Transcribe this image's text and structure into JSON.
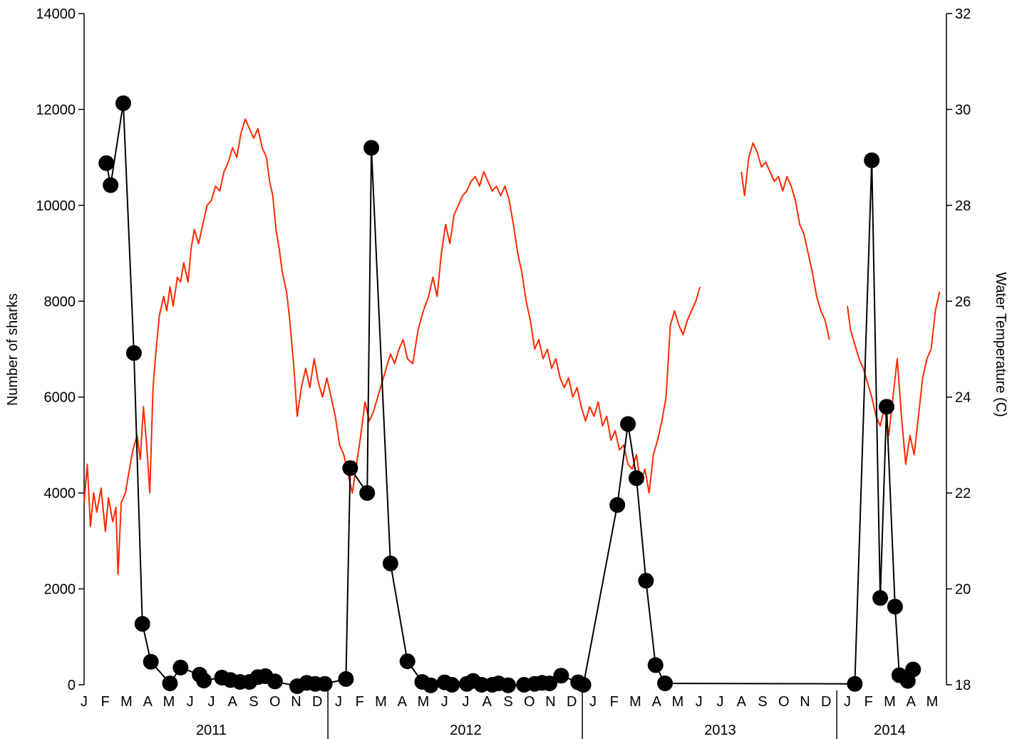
{
  "chart_data": {
    "type": "line",
    "title": "",
    "ylabel_left": "Number of sharks",
    "ylabel_right": "Water Temperature (C)",
    "y_left_lim": [
      0,
      14000
    ],
    "y_left_ticks": [
      "0",
      "2000",
      "4000",
      "6000",
      "8000",
      "10000",
      "12000",
      "14000"
    ],
    "y_right_lim": [
      18,
      32
    ],
    "y_right_ticks": [
      "18",
      "20",
      "22",
      "24",
      "26",
      "28",
      "30",
      "32"
    ],
    "x_range_months": [
      0,
      40
    ],
    "month_labels": [
      "J",
      "F",
      "M",
      "A",
      "M",
      "J",
      "J",
      "A",
      "S",
      "O",
      "N",
      "D",
      "J",
      "F",
      "M",
      "A",
      "M",
      "J",
      "J",
      "A",
      "S",
      "O",
      "N",
      "D",
      "J",
      "F",
      "M",
      "A",
      "M",
      "J",
      "J",
      "A",
      "S",
      "O",
      "N",
      "D",
      "J",
      "F",
      "M",
      "A",
      "M"
    ],
    "years": [
      {
        "label": "2011",
        "start": 0,
        "end": 12
      },
      {
        "label": "2012",
        "start": 12,
        "end": 24
      },
      {
        "label": "2013",
        "start": 24,
        "end": 36
      },
      {
        "label": "2014",
        "start": 36,
        "end": 40
      }
    ],
    "colors": {
      "sharks": "#000000",
      "temperature": "#ff2a00"
    },
    "series": [
      {
        "axis": "left",
        "marker": "circle",
        "points": [
          [
            1.05,
            10880
          ],
          [
            1.25,
            10420
          ],
          [
            1.85,
            12130
          ],
          [
            2.35,
            6920
          ],
          [
            2.75,
            1270
          ],
          [
            3.15,
            480
          ],
          [
            4.05,
            30
          ],
          [
            4.55,
            360
          ],
          [
            5.45,
            210
          ],
          [
            5.65,
            90
          ],
          [
            6.5,
            150
          ],
          [
            6.9,
            100
          ],
          [
            7.35,
            60
          ],
          [
            7.8,
            60
          ],
          [
            8.2,
            160
          ],
          [
            8.55,
            180
          ],
          [
            9.0,
            70
          ],
          [
            10.05,
            -30
          ],
          [
            10.5,
            40
          ],
          [
            10.9,
            20
          ],
          [
            11.35,
            20
          ],
          [
            12.35,
            120
          ],
          [
            12.55,
            4520
          ],
          [
            13.35,
            4000
          ],
          [
            13.55,
            11200
          ],
          [
            14.45,
            2530
          ],
          [
            15.25,
            490
          ],
          [
            15.95,
            60
          ],
          [
            16.35,
            -10
          ],
          [
            17.0,
            50
          ],
          [
            17.35,
            0
          ],
          [
            18.05,
            20
          ],
          [
            18.35,
            80
          ],
          [
            18.75,
            0
          ],
          [
            19.25,
            0
          ],
          [
            19.55,
            30
          ],
          [
            20.0,
            -10
          ],
          [
            20.75,
            0
          ],
          [
            21.25,
            20
          ],
          [
            21.6,
            40
          ],
          [
            21.95,
            30
          ],
          [
            22.5,
            190
          ],
          [
            23.3,
            50
          ],
          [
            23.55,
            0
          ],
          [
            25.15,
            3750
          ],
          [
            25.65,
            5440
          ],
          [
            26.05,
            4310
          ],
          [
            26.5,
            2170
          ],
          [
            26.95,
            410
          ],
          [
            27.4,
            30
          ],
          [
            36.35,
            20
          ],
          [
            37.15,
            10940
          ],
          [
            37.55,
            1810
          ],
          [
            37.85,
            5800
          ],
          [
            38.25,
            1630
          ],
          [
            38.45,
            200
          ],
          [
            38.85,
            80
          ],
          [
            39.1,
            320
          ]
        ]
      },
      {
        "axis": "right",
        "segments": [
          [
            [
              0,
              21.8
            ],
            [
              0.15,
              22.6
            ],
            [
              0.3,
              21.3
            ],
            [
              0.45,
              22.0
            ],
            [
              0.6,
              21.6
            ],
            [
              0.8,
              22.1
            ],
            [
              1.0,
              21.2
            ],
            [
              1.15,
              21.9
            ],
            [
              1.35,
              21.4
            ],
            [
              1.5,
              21.7
            ],
            [
              1.6,
              20.3
            ],
            [
              1.75,
              21.8
            ],
            [
              1.95,
              22.0
            ],
            [
              2.1,
              22.4
            ],
            [
              2.3,
              22.9
            ],
            [
              2.5,
              23.2
            ],
            [
              2.65,
              22.7
            ],
            [
              2.8,
              23.8
            ],
            [
              2.95,
              23.0
            ],
            [
              3.1,
              22.0
            ],
            [
              3.25,
              24.2
            ],
            [
              3.4,
              25.0
            ],
            [
              3.55,
              25.7
            ],
            [
              3.75,
              26.1
            ],
            [
              3.9,
              25.8
            ],
            [
              4.05,
              26.3
            ],
            [
              4.2,
              25.9
            ],
            [
              4.4,
              26.5
            ],
            [
              4.55,
              26.4
            ],
            [
              4.7,
              26.8
            ],
            [
              4.9,
              26.4
            ],
            [
              5.05,
              27.1
            ],
            [
              5.2,
              27.5
            ],
            [
              5.4,
              27.2
            ],
            [
              5.6,
              27.6
            ],
            [
              5.8,
              28.0
            ],
            [
              6.0,
              28.1
            ],
            [
              6.2,
              28.4
            ],
            [
              6.4,
              28.3
            ],
            [
              6.6,
              28.7
            ],
            [
              6.8,
              28.9
            ],
            [
              7.0,
              29.2
            ],
            [
              7.2,
              29.0
            ],
            [
              7.4,
              29.5
            ],
            [
              7.6,
              29.8
            ],
            [
              7.8,
              29.6
            ],
            [
              8.0,
              29.4
            ],
            [
              8.2,
              29.6
            ],
            [
              8.4,
              29.2
            ],
            [
              8.6,
              29.0
            ],
            [
              8.75,
              28.5
            ],
            [
              8.9,
              28.2
            ],
            [
              9.05,
              27.5
            ],
            [
              9.2,
              27.1
            ],
            [
              9.35,
              26.6
            ],
            [
              9.55,
              26.2
            ],
            [
              9.7,
              25.6
            ],
            [
              9.9,
              24.6
            ],
            [
              10.05,
              23.6
            ],
            [
              10.25,
              24.2
            ],
            [
              10.45,
              24.6
            ],
            [
              10.65,
              24.2
            ],
            [
              10.85,
              24.8
            ],
            [
              11.05,
              24.3
            ],
            [
              11.25,
              24.0
            ],
            [
              11.45,
              24.4
            ],
            [
              11.65,
              24.0
            ],
            [
              11.85,
              23.6
            ],
            [
              12.05,
              23.0
            ],
            [
              12.25,
              22.8
            ],
            [
              12.45,
              22.4
            ],
            [
              12.65,
              22.0
            ],
            [
              12.85,
              22.6
            ],
            [
              13.05,
              23.2
            ],
            [
              13.25,
              23.9
            ],
            [
              13.45,
              23.5
            ],
            [
              13.65,
              23.7
            ],
            [
              13.85,
              24.0
            ],
            [
              14.05,
              24.3
            ],
            [
              14.25,
              24.6
            ],
            [
              14.45,
              24.9
            ],
            [
              14.65,
              24.7
            ],
            [
              14.85,
              25.0
            ],
            [
              15.05,
              25.2
            ],
            [
              15.25,
              24.8
            ],
            [
              15.5,
              24.7
            ],
            [
              15.75,
              25.4
            ],
            [
              16.0,
              25.8
            ],
            [
              16.25,
              26.1
            ],
            [
              16.45,
              26.5
            ],
            [
              16.65,
              26.1
            ],
            [
              16.85,
              27.0
            ],
            [
              17.05,
              27.6
            ],
            [
              17.25,
              27.2
            ],
            [
              17.45,
              27.8
            ],
            [
              17.65,
              28.0
            ],
            [
              17.85,
              28.2
            ],
            [
              18.05,
              28.3
            ],
            [
              18.25,
              28.5
            ],
            [
              18.45,
              28.6
            ],
            [
              18.65,
              28.4
            ],
            [
              18.85,
              28.7
            ],
            [
              19.05,
              28.5
            ],
            [
              19.25,
              28.3
            ],
            [
              19.45,
              28.4
            ],
            [
              19.65,
              28.2
            ],
            [
              19.85,
              28.4
            ],
            [
              20.05,
              28.1
            ],
            [
              20.25,
              27.6
            ],
            [
              20.45,
              27.0
            ],
            [
              20.65,
              26.6
            ],
            [
              20.85,
              26.0
            ],
            [
              21.05,
              25.6
            ],
            [
              21.25,
              25.0
            ],
            [
              21.45,
              25.2
            ],
            [
              21.65,
              24.8
            ],
            [
              21.85,
              25.0
            ],
            [
              22.05,
              24.6
            ],
            [
              22.25,
              24.8
            ],
            [
              22.45,
              24.4
            ],
            [
              22.65,
              24.2
            ],
            [
              22.85,
              24.4
            ],
            [
              23.05,
              24.0
            ],
            [
              23.25,
              24.2
            ],
            [
              23.45,
              23.8
            ],
            [
              23.65,
              23.5
            ],
            [
              23.85,
              23.8
            ],
            [
              24.05,
              23.6
            ],
            [
              24.25,
              23.9
            ],
            [
              24.45,
              23.4
            ],
            [
              24.65,
              23.6
            ],
            [
              24.85,
              23.1
            ],
            [
              25.05,
              23.3
            ],
            [
              25.25,
              22.9
            ],
            [
              25.45,
              23.0
            ],
            [
              25.65,
              22.6
            ],
            [
              25.85,
              22.5
            ],
            [
              26.05,
              22.8
            ],
            [
              26.25,
              22.2
            ],
            [
              26.45,
              22.5
            ],
            [
              26.65,
              22.0
            ],
            [
              26.85,
              22.8
            ],
            [
              27.05,
              23.1
            ],
            [
              27.25,
              23.5
            ],
            [
              27.45,
              24.0
            ],
            [
              27.65,
              25.5
            ],
            [
              27.85,
              25.8
            ],
            [
              28.05,
              25.5
            ],
            [
              28.25,
              25.3
            ],
            [
              28.45,
              25.6
            ],
            [
              28.65,
              25.8
            ],
            [
              28.85,
              26.0
            ],
            [
              29.05,
              26.3
            ]
          ],
          [
            [
              31.0,
              28.7
            ],
            [
              31.15,
              28.2
            ],
            [
              31.35,
              29.0
            ],
            [
              31.55,
              29.3
            ],
            [
              31.75,
              29.1
            ],
            [
              31.95,
              28.8
            ],
            [
              32.15,
              28.9
            ],
            [
              32.35,
              28.7
            ],
            [
              32.55,
              28.5
            ],
            [
              32.75,
              28.6
            ],
            [
              32.95,
              28.3
            ],
            [
              33.15,
              28.6
            ],
            [
              33.35,
              28.4
            ],
            [
              33.55,
              28.1
            ],
            [
              33.75,
              27.6
            ],
            [
              33.95,
              27.4
            ],
            [
              34.15,
              27.0
            ],
            [
              34.35,
              26.6
            ],
            [
              34.55,
              26.1
            ],
            [
              34.75,
              25.8
            ],
            [
              34.95,
              25.6
            ],
            [
              35.15,
              25.2
            ]
          ],
          [
            [
              36.0,
              25.9
            ],
            [
              36.15,
              25.4
            ],
            [
              36.35,
              25.1
            ],
            [
              36.55,
              24.8
            ],
            [
              36.75,
              24.6
            ],
            [
              36.95,
              24.3
            ],
            [
              37.15,
              24.0
            ],
            [
              37.35,
              23.6
            ],
            [
              37.55,
              23.4
            ],
            [
              37.75,
              23.8
            ],
            [
              37.95,
              23.2
            ],
            [
              38.15,
              24.0
            ],
            [
              38.35,
              24.8
            ],
            [
              38.55,
              23.6
            ],
            [
              38.75,
              22.6
            ],
            [
              38.95,
              23.2
            ],
            [
              39.15,
              22.8
            ],
            [
              39.35,
              23.6
            ],
            [
              39.55,
              24.4
            ],
            [
              39.75,
              24.8
            ],
            [
              39.95,
              25.0
            ],
            [
              40.15,
              25.8
            ],
            [
              40.35,
              26.2
            ]
          ]
        ]
      }
    ]
  }
}
